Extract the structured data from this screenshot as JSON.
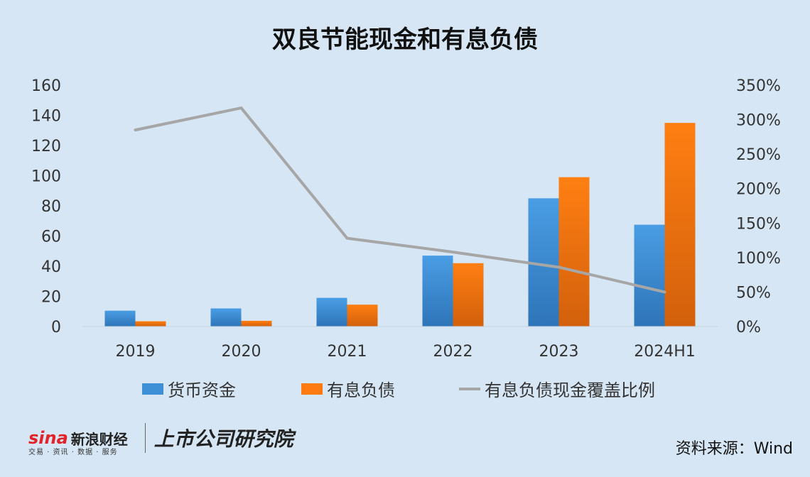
{
  "title": "双良节能现金和有息负债",
  "footer": {
    "brand_sina": "sina",
    "brand_cn": "新浪财经",
    "brand_sub": "交易 · 资讯 · 数据 · 服务",
    "brand_inst": "上市公司研究院",
    "source": "资料来源：Wind"
  },
  "colors": {
    "cash": "#3d8fd6",
    "debt": "#ff7a10",
    "ratio": "#a6a6a6"
  },
  "chart_data": {
    "type": "bar",
    "categories": [
      "2019",
      "2020",
      "2021",
      "2022",
      "2023",
      "2024H1"
    ],
    "series": [
      {
        "name": "货币资金",
        "type": "bar",
        "axis": "left",
        "values": [
          10.5,
          12,
          19,
          47,
          85,
          67.5
        ]
      },
      {
        "name": "有息负债",
        "type": "bar",
        "axis": "left",
        "values": [
          3.5,
          3.8,
          14.5,
          42,
          99,
          135
        ]
      },
      {
        "name": "有息负债现金覆盖比例",
        "type": "line",
        "axis": "right",
        "values": [
          2.85,
          3.17,
          1.28,
          1.08,
          0.86,
          0.5
        ]
      }
    ],
    "ylim": [
      0,
      160
    ],
    "yticks": [
      "0",
      "20",
      "40",
      "60",
      "80",
      "100",
      "120",
      "140",
      "160"
    ],
    "y2lim": [
      0,
      3.5
    ],
    "y2ticks": [
      "0%",
      "50%",
      "100%",
      "150%",
      "200%",
      "250%",
      "300%",
      "350%"
    ],
    "grid": false,
    "legend": "bottom"
  }
}
